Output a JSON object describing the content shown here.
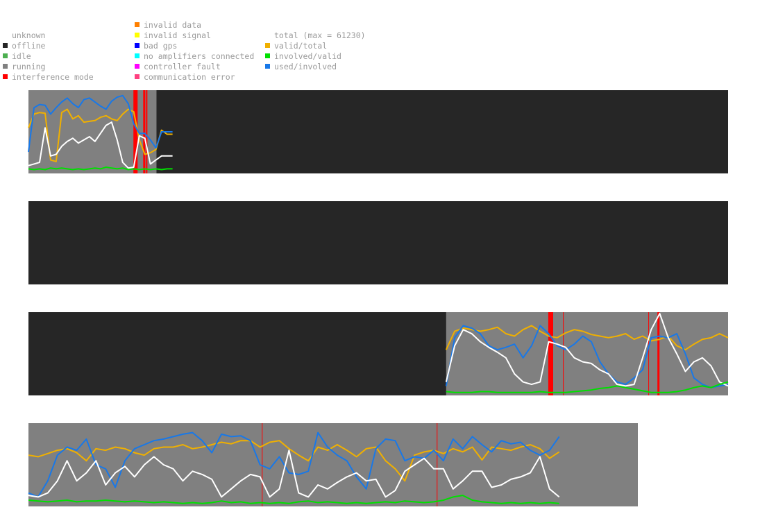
{
  "legend": {
    "status": [
      {
        "label": "unknown",
        "color": null
      },
      {
        "label": "offline",
        "color": "#262626"
      },
      {
        "label": "idle",
        "color": "#4caf50"
      },
      {
        "label": "running",
        "color": "#808080"
      },
      {
        "label": "interference mode",
        "color": "#ff0000"
      }
    ],
    "errors": [
      {
        "label": "invalid data",
        "color": "#ff8000"
      },
      {
        "label": "invalid signal",
        "color": "#ffff00"
      },
      {
        "label": "bad gps",
        "color": "#0000ff"
      },
      {
        "label": "no amplifiers connected",
        "color": "#00ffff"
      },
      {
        "label": "controller fault",
        "color": "#ff00ff"
      },
      {
        "label": "communication error",
        "color": "#ff4080"
      }
    ],
    "series": [
      {
        "label": "total (max = 61230)",
        "color": null
      },
      {
        "label": "valid/total",
        "color": "#f0b000"
      },
      {
        "label": "involved/valid",
        "color": "#00e000"
      },
      {
        "label": "used/involved",
        "color": "#1878e8"
      }
    ]
  },
  "colors": {
    "offline": "#262626",
    "running": "#808080",
    "interference": "#ff0000",
    "total": "#ffffff",
    "valid_total": "#f0b000",
    "involved_valid": "#00e000",
    "used_involved": "#1878e8"
  },
  "chart_data": [
    {
      "type": "line",
      "panel": 1,
      "running_interval": [
        0.0,
        0.183
      ],
      "data_end": 0.206,
      "interference_marks": [
        [
          0.15,
          0.156
        ],
        [
          0.164,
          0.167
        ],
        [
          0.168,
          0.17
        ]
      ],
      "series": [
        {
          "key": "valid_total",
          "values": [
            0.55,
            0.72,
            0.74,
            0.73,
            0.15,
            0.13,
            0.74,
            0.78,
            0.66,
            0.7,
            0.62,
            0.63,
            0.64,
            0.68,
            0.7,
            0.66,
            0.64,
            0.72,
            0.78,
            0.75,
            0.4,
            0.22,
            0.24,
            0.28,
            0.52,
            0.47,
            0.47
          ]
        },
        {
          "key": "used_involved",
          "values": [
            0.25,
            0.8,
            0.84,
            0.83,
            0.72,
            0.8,
            0.87,
            0.92,
            0.85,
            0.8,
            0.9,
            0.92,
            0.87,
            0.82,
            0.78,
            0.88,
            0.93,
            0.95,
            0.85,
            0.6,
            0.48,
            0.48,
            0.4,
            0.3,
            0.5,
            0.5,
            0.5
          ]
        },
        {
          "key": "total",
          "values": [
            0.08,
            0.1,
            0.12,
            0.55,
            0.2,
            0.22,
            0.32,
            0.38,
            0.42,
            0.36,
            0.4,
            0.44,
            0.38,
            0.48,
            0.58,
            0.62,
            0.4,
            0.12,
            0.05,
            0.06,
            0.45,
            0.42,
            0.1,
            0.15,
            0.2,
            0.2,
            0.2
          ]
        },
        {
          "key": "involved_valid",
          "values": [
            0.04,
            0.03,
            0.04,
            0.03,
            0.05,
            0.04,
            0.05,
            0.04,
            0.03,
            0.04,
            0.03,
            0.04,
            0.05,
            0.04,
            0.06,
            0.05,
            0.04,
            0.05,
            0.03,
            0.04,
            0.03,
            0.04,
            0.03,
            0.04,
            0.03,
            0.04,
            0.04
          ]
        }
      ]
    },
    {
      "type": "line",
      "panel": 2,
      "running_interval": null,
      "interference_marks": [],
      "series": []
    },
    {
      "type": "line",
      "panel": 3,
      "running_interval": [
        0.597,
        1.0
      ],
      "data_start": 0.597,
      "interference_marks": [
        [
          0.743,
          0.75
        ],
        [
          0.764,
          0.765
        ],
        [
          0.886,
          0.887
        ],
        [
          0.899,
          0.902
        ]
      ],
      "series": [
        {
          "key": "valid_total",
          "values": [
            0.55,
            0.78,
            0.82,
            0.8,
            0.78,
            0.8,
            0.83,
            0.75,
            0.72,
            0.8,
            0.85,
            0.78,
            0.72,
            0.7,
            0.76,
            0.8,
            0.78,
            0.74,
            0.72,
            0.7,
            0.72,
            0.75,
            0.68,
            0.72,
            0.66,
            0.68,
            0.72,
            0.6,
            0.55,
            0.62,
            0.68,
            0.7,
            0.75,
            0.7
          ]
        },
        {
          "key": "used_involved",
          "values": [
            0.1,
            0.7,
            0.85,
            0.82,
            0.75,
            0.6,
            0.55,
            0.58,
            0.62,
            0.45,
            0.6,
            0.85,
            0.75,
            0.6,
            0.55,
            0.62,
            0.72,
            0.65,
            0.4,
            0.25,
            0.15,
            0.12,
            0.2,
            0.3,
            0.7,
            0.72,
            0.7,
            0.75,
            0.5,
            0.2,
            0.12,
            0.08,
            0.1,
            0.12
          ]
        },
        {
          "key": "total",
          "values": [
            0.15,
            0.6,
            0.8,
            0.75,
            0.65,
            0.58,
            0.52,
            0.45,
            0.25,
            0.15,
            0.12,
            0.15,
            0.65,
            0.62,
            0.58,
            0.45,
            0.4,
            0.38,
            0.3,
            0.25,
            0.12,
            0.1,
            0.12,
            0.45,
            0.8,
            1.0,
            0.7,
            0.5,
            0.28,
            0.4,
            0.45,
            0.35,
            0.15,
            0.1
          ]
        },
        {
          "key": "involved_valid",
          "values": [
            0.03,
            0.02,
            0.02,
            0.02,
            0.03,
            0.03,
            0.02,
            0.02,
            0.02,
            0.02,
            0.02,
            0.03,
            0.02,
            0.02,
            0.02,
            0.03,
            0.04,
            0.05,
            0.07,
            0.08,
            0.1,
            0.08,
            0.06,
            0.04,
            0.02,
            0.02,
            0.02,
            0.03,
            0.05,
            0.08,
            0.1,
            0.08,
            0.12,
            0.15
          ]
        }
      ]
    },
    {
      "type": "line",
      "panel": 4,
      "running_interval": [
        0.0,
        0.871
      ],
      "data_end": 0.871,
      "interference_marks": [
        [
          0.383,
          0.384
        ],
        [
          0.67,
          0.671
        ]
      ],
      "series": [
        {
          "key": "valid_total",
          "values": [
            0.62,
            0.6,
            0.64,
            0.68,
            0.7,
            0.65,
            0.55,
            0.7,
            0.68,
            0.72,
            0.7,
            0.65,
            0.62,
            0.7,
            0.72,
            0.72,
            0.75,
            0.7,
            0.72,
            0.75,
            0.78,
            0.76,
            0.8,
            0.8,
            0.72,
            0.78,
            0.8,
            0.7,
            0.62,
            0.55,
            0.72,
            0.68,
            0.75,
            0.68,
            0.6,
            0.7,
            0.72,
            0.55,
            0.45,
            0.3,
            0.62,
            0.66,
            0.68,
            0.64,
            0.7,
            0.66,
            0.72,
            0.56,
            0.72,
            0.7,
            0.68,
            0.72,
            0.75,
            0.7,
            0.58,
            0.66
          ]
        },
        {
          "key": "used_involved",
          "values": [
            0.15,
            0.1,
            0.3,
            0.62,
            0.72,
            0.68,
            0.82,
            0.5,
            0.45,
            0.22,
            0.55,
            0.7,
            0.75,
            0.8,
            0.82,
            0.85,
            0.88,
            0.9,
            0.8,
            0.65,
            0.88,
            0.85,
            0.86,
            0.8,
            0.5,
            0.45,
            0.6,
            0.4,
            0.38,
            0.42,
            0.9,
            0.72,
            0.62,
            0.55,
            0.35,
            0.2,
            0.7,
            0.82,
            0.8,
            0.55,
            0.6,
            0.58,
            0.68,
            0.55,
            0.82,
            0.7,
            0.85,
            0.75,
            0.66,
            0.8,
            0.76,
            0.78,
            0.68,
            0.62,
            0.68,
            0.85
          ]
        },
        {
          "key": "total",
          "values": [
            0.12,
            0.1,
            0.15,
            0.3,
            0.55,
            0.3,
            0.4,
            0.55,
            0.25,
            0.4,
            0.48,
            0.35,
            0.5,
            0.6,
            0.5,
            0.45,
            0.3,
            0.42,
            0.38,
            0.32,
            0.1,
            0.2,
            0.3,
            0.38,
            0.35,
            0.1,
            0.2,
            0.68,
            0.15,
            0.1,
            0.25,
            0.2,
            0.28,
            0.35,
            0.4,
            0.3,
            0.32,
            0.1,
            0.18,
            0.42,
            0.5,
            0.58,
            0.45,
            0.45,
            0.2,
            0.3,
            0.42,
            0.42,
            0.22,
            0.25,
            0.32,
            0.35,
            0.4,
            0.6,
            0.2,
            0.1
          ]
        },
        {
          "key": "involved_valid",
          "values": [
            0.06,
            0.05,
            0.04,
            0.05,
            0.06,
            0.04,
            0.05,
            0.05,
            0.06,
            0.05,
            0.04,
            0.05,
            0.04,
            0.03,
            0.04,
            0.03,
            0.02,
            0.03,
            0.02,
            0.03,
            0.05,
            0.03,
            0.04,
            0.02,
            0.03,
            0.02,
            0.03,
            0.02,
            0.04,
            0.05,
            0.03,
            0.04,
            0.03,
            0.02,
            0.03,
            0.02,
            0.03,
            0.04,
            0.03,
            0.05,
            0.04,
            0.03,
            0.04,
            0.06,
            0.1,
            0.12,
            0.06,
            0.04,
            0.03,
            0.02,
            0.03,
            0.02,
            0.03,
            0.02,
            0.03,
            0.02
          ]
        }
      ]
    }
  ]
}
